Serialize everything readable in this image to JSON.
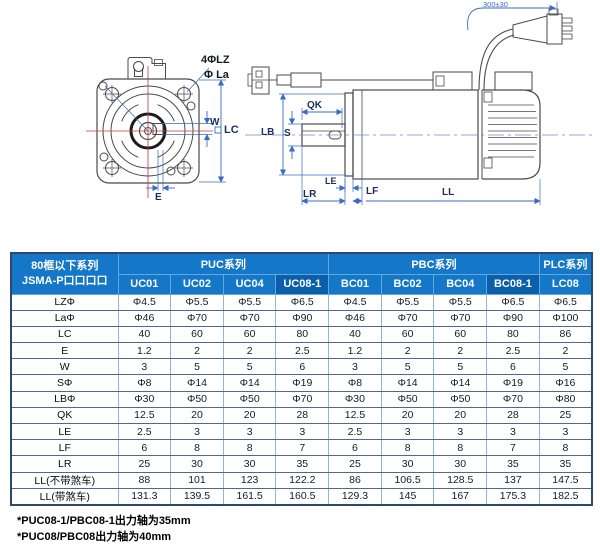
{
  "diagram": {
    "front": {
      "holes": "4ΦLZ",
      "pilot": "Φ La",
      "w": "W",
      "lc": "LC",
      "e": "E"
    },
    "side": {
      "qk": "QK",
      "lb": "LB",
      "s": "S",
      "le": "LE",
      "lr": "LR",
      "lf": "LF",
      "ll": "LL",
      "cable": "300±30"
    }
  },
  "table": {
    "corner": {
      "line1": "80框以下系列",
      "line2": "JSMA-P口口口口"
    },
    "groups": [
      {
        "label": "PUC系列",
        "span": 4
      },
      {
        "label": "PBC系列",
        "span": 4
      },
      {
        "label": "PLC系列",
        "span": 1
      }
    ],
    "models": [
      {
        "name": "UC01"
      },
      {
        "name": "UC02"
      },
      {
        "name": "UC04"
      },
      {
        "name": "UC08-1",
        "highlight": true
      },
      {
        "name": "BC01"
      },
      {
        "name": "BC02"
      },
      {
        "name": "BC04"
      },
      {
        "name": "BC08-1",
        "highlight": true
      },
      {
        "name": "LC08"
      }
    ],
    "rows": [
      {
        "label": "LZΦ",
        "values": [
          "Φ4.5",
          "Φ5.5",
          "Φ5.5",
          "Φ6.5",
          "Φ4.5",
          "Φ5.5",
          "Φ5.5",
          "Φ6.5",
          "Φ6.5"
        ]
      },
      {
        "label": "LaΦ",
        "values": [
          "Φ46",
          "Φ70",
          "Φ70",
          "Φ90",
          "Φ46",
          "Φ70",
          "Φ70",
          "Φ90",
          "Φ100"
        ]
      },
      {
        "label": "LC",
        "values": [
          "40",
          "60",
          "60",
          "80",
          "40",
          "60",
          "60",
          "80",
          "86"
        ]
      },
      {
        "label": "E",
        "values": [
          "1.2",
          "2",
          "2",
          "2.5",
          "1.2",
          "2",
          "2",
          "2.5",
          "2"
        ]
      },
      {
        "label": "W",
        "values": [
          "3",
          "5",
          "5",
          "6",
          "3",
          "5",
          "5",
          "6",
          "5"
        ]
      },
      {
        "label": "SΦ",
        "values": [
          "Φ8",
          "Φ14",
          "Φ14",
          "Φ19",
          "Φ8",
          "Φ14",
          "Φ14",
          "Φ19",
          "Φ16"
        ]
      },
      {
        "label": "LBΦ",
        "values": [
          "Φ30",
          "Φ50",
          "Φ50",
          "Φ70",
          "Φ30",
          "Φ50",
          "Φ50",
          "Φ70",
          "Φ80"
        ]
      },
      {
        "label": "QK",
        "values": [
          "12.5",
          "20",
          "20",
          "28",
          "12.5",
          "20",
          "20",
          "28",
          "25"
        ]
      },
      {
        "label": "LE",
        "values": [
          "2.5",
          "3",
          "3",
          "3",
          "2.5",
          "3",
          "3",
          "3",
          "3"
        ]
      },
      {
        "label": "LF",
        "values": [
          "6",
          "8",
          "8",
          "7",
          "6",
          "8",
          "8",
          "7",
          "8"
        ]
      },
      {
        "label": "LR",
        "values": [
          "25",
          "30",
          "30",
          "35",
          "25",
          "30",
          "30",
          "35",
          "35"
        ]
      },
      {
        "label": "LL(不带煞车)",
        "values": [
          "88",
          "101",
          "123",
          "122.2",
          "86",
          "106.5",
          "128.5",
          "137",
          "147.5"
        ]
      },
      {
        "label": "LL(带煞车)",
        "values": [
          "131.3",
          "139.5",
          "161.5",
          "160.5",
          "129.3",
          "145",
          "167",
          "175.3",
          "182.5"
        ]
      }
    ]
  },
  "footnotes": [
    "*PUC08-1/PBC08-1出力轴为35mm",
    "*PUC08/PBC08出力轴为40mm"
  ],
  "colors": {
    "header_blue": "#1577C8",
    "header_dark_blue": "#0B5FA8",
    "dimension_blue": "#3a6bc4",
    "centerline_red": "#c43b3b",
    "table_outer_border": "#2a4a72"
  }
}
